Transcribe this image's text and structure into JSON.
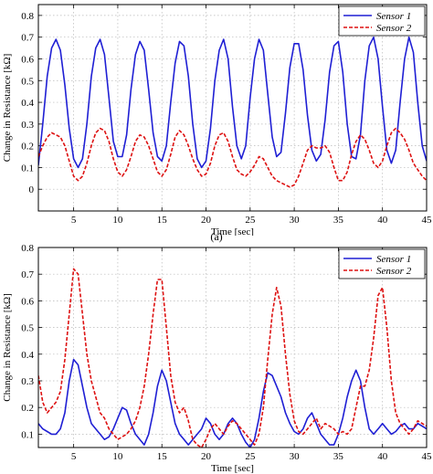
{
  "caption": "(a)",
  "chart_data": [
    {
      "type": "line",
      "title": "",
      "xlabel": "Time [sec]",
      "ylabel": "Change in Resistance [kΩ]",
      "xlim": [
        1,
        45
      ],
      "ylim": [
        -0.1,
        0.85
      ],
      "xticks": [
        5,
        10,
        15,
        20,
        25,
        30,
        35,
        40,
        45
      ],
      "yticks": [
        0,
        0.1,
        0.2,
        0.3,
        0.4,
        0.5,
        0.6,
        0.7,
        0.8
      ],
      "grid": true,
      "legend_position": "top-right",
      "series": [
        {
          "name": "Sensor 1",
          "color": "#1f1fd4",
          "style": "solid",
          "x": [
            1,
            1.5,
            2,
            2.5,
            3,
            3.5,
            4,
            4.5,
            5,
            5.5,
            6,
            6.5,
            7,
            7.5,
            8,
            8.5,
            9,
            9.5,
            10,
            10.5,
            11,
            11.5,
            12,
            12.5,
            13,
            13.5,
            14,
            14.5,
            15,
            15.5,
            16,
            16.5,
            17,
            17.5,
            18,
            18.5,
            19,
            19.5,
            20,
            20.5,
            21,
            21.5,
            22,
            22.5,
            23,
            23.5,
            24,
            24.5,
            25,
            25.5,
            26,
            26.5,
            27,
            27.5,
            28,
            28.5,
            29,
            29.5,
            30,
            30.5,
            31,
            31.5,
            32,
            32.5,
            33,
            33.5,
            34,
            34.5,
            35,
            35.5,
            36,
            36.5,
            37,
            37.5,
            38,
            38.5,
            39,
            39.5,
            40,
            40.5,
            41,
            41.5,
            42,
            42.5,
            43,
            43.5,
            44,
            44.5,
            45
          ],
          "values": [
            0.11,
            0.3,
            0.52,
            0.65,
            0.69,
            0.64,
            0.48,
            0.28,
            0.14,
            0.1,
            0.14,
            0.3,
            0.52,
            0.65,
            0.69,
            0.62,
            0.42,
            0.22,
            0.15,
            0.15,
            0.25,
            0.46,
            0.62,
            0.68,
            0.64,
            0.46,
            0.26,
            0.15,
            0.13,
            0.2,
            0.4,
            0.58,
            0.68,
            0.66,
            0.52,
            0.3,
            0.14,
            0.1,
            0.13,
            0.28,
            0.5,
            0.64,
            0.69,
            0.6,
            0.38,
            0.2,
            0.14,
            0.2,
            0.42,
            0.6,
            0.69,
            0.64,
            0.44,
            0.24,
            0.15,
            0.17,
            0.35,
            0.56,
            0.67,
            0.67,
            0.55,
            0.34,
            0.18,
            0.13,
            0.16,
            0.32,
            0.54,
            0.66,
            0.68,
            0.54,
            0.3,
            0.15,
            0.14,
            0.25,
            0.5,
            0.66,
            0.7,
            0.6,
            0.38,
            0.18,
            0.12,
            0.18,
            0.4,
            0.6,
            0.7,
            0.63,
            0.4,
            0.2,
            0.13
          ]
        },
        {
          "name": "Sensor 2",
          "color": "#dd1111",
          "style": "dashed",
          "x": [
            1,
            1.5,
            2,
            2.5,
            3,
            3.5,
            4,
            4.5,
            5,
            5.5,
            6,
            6.5,
            7,
            7.5,
            8,
            8.5,
            9,
            9.5,
            10,
            10.5,
            11,
            11.5,
            12,
            12.5,
            13,
            13.5,
            14,
            14.5,
            15,
            15.5,
            16,
            16.5,
            17,
            17.5,
            18,
            18.5,
            19,
            19.5,
            20,
            20.5,
            21,
            21.5,
            22,
            22.5,
            23,
            23.5,
            24,
            24.5,
            25,
            25.5,
            26,
            26.5,
            27,
            27.5,
            28,
            28.5,
            29,
            29.5,
            30,
            30.5,
            31,
            31.5,
            32,
            32.5,
            33,
            33.5,
            34,
            34.5,
            35,
            35.5,
            36,
            36.5,
            37,
            37.5,
            38,
            38.5,
            39,
            39.5,
            40,
            40.5,
            41,
            41.5,
            42,
            42.5,
            43,
            43.5,
            44,
            44.5,
            45
          ],
          "values": [
            0.15,
            0.2,
            0.24,
            0.26,
            0.25,
            0.24,
            0.2,
            0.13,
            0.06,
            0.04,
            0.06,
            0.12,
            0.2,
            0.26,
            0.28,
            0.27,
            0.22,
            0.14,
            0.08,
            0.06,
            0.09,
            0.15,
            0.22,
            0.25,
            0.24,
            0.2,
            0.14,
            0.08,
            0.06,
            0.09,
            0.16,
            0.24,
            0.27,
            0.25,
            0.2,
            0.14,
            0.09,
            0.06,
            0.07,
            0.12,
            0.2,
            0.25,
            0.26,
            0.22,
            0.15,
            0.09,
            0.07,
            0.06,
            0.08,
            0.11,
            0.15,
            0.14,
            0.1,
            0.06,
            0.04,
            0.03,
            0.02,
            0.01,
            0.02,
            0.06,
            0.12,
            0.18,
            0.2,
            0.19,
            0.19,
            0.2,
            0.17,
            0.1,
            0.04,
            0.04,
            0.08,
            0.16,
            0.22,
            0.25,
            0.23,
            0.18,
            0.12,
            0.1,
            0.13,
            0.2,
            0.26,
            0.28,
            0.26,
            0.23,
            0.18,
            0.12,
            0.09,
            0.06,
            0.04
          ]
        }
      ]
    },
    {
      "type": "line",
      "title": "",
      "xlabel": "Time [sec]",
      "ylabel": "Change in Resistance [kΩ]",
      "xlim": [
        1,
        45
      ],
      "ylim": [
        0.05,
        0.8
      ],
      "xticks": [
        5,
        10,
        15,
        20,
        25,
        30,
        35,
        40,
        45
      ],
      "yticks": [
        0.1,
        0.2,
        0.3,
        0.4,
        0.5,
        0.6,
        0.7,
        0.8
      ],
      "grid": true,
      "legend_position": "top-right",
      "series": [
        {
          "name": "Sensor 1",
          "color": "#1f1fd4",
          "style": "solid",
          "x": [
            1,
            1.5,
            2,
            2.5,
            3,
            3.5,
            4,
            4.5,
            5,
            5.5,
            6,
            6.5,
            7,
            7.5,
            8,
            8.5,
            9,
            9.5,
            10,
            10.5,
            11,
            11.5,
            12,
            12.5,
            13,
            13.5,
            14,
            14.5,
            15,
            15.5,
            16,
            16.5,
            17,
            17.5,
            18,
            18.5,
            19,
            19.5,
            20,
            20.5,
            21,
            21.5,
            22,
            22.5,
            23,
            23.5,
            24,
            24.5,
            25,
            25.5,
            26,
            26.5,
            27,
            27.5,
            28,
            28.5,
            29,
            29.5,
            30,
            30.5,
            31,
            31.5,
            32,
            32.5,
            33,
            33.5,
            34,
            34.5,
            35,
            35.5,
            36,
            36.5,
            37,
            37.5,
            38,
            38.5,
            39,
            39.5,
            40,
            40.5,
            41,
            41.5,
            42,
            42.5,
            43,
            43.5,
            44,
            44.5,
            45
          ],
          "values": [
            0.14,
            0.12,
            0.11,
            0.1,
            0.1,
            0.12,
            0.18,
            0.3,
            0.38,
            0.36,
            0.28,
            0.2,
            0.14,
            0.12,
            0.1,
            0.08,
            0.09,
            0.12,
            0.16,
            0.2,
            0.19,
            0.14,
            0.1,
            0.08,
            0.06,
            0.1,
            0.18,
            0.28,
            0.34,
            0.3,
            0.22,
            0.14,
            0.1,
            0.08,
            0.06,
            0.08,
            0.1,
            0.12,
            0.16,
            0.14,
            0.1,
            0.08,
            0.1,
            0.14,
            0.16,
            0.14,
            0.1,
            0.07,
            0.05,
            0.08,
            0.16,
            0.26,
            0.33,
            0.32,
            0.28,
            0.24,
            0.18,
            0.14,
            0.11,
            0.1,
            0.12,
            0.16,
            0.18,
            0.14,
            0.1,
            0.08,
            0.06,
            0.06,
            0.1,
            0.16,
            0.24,
            0.3,
            0.34,
            0.3,
            0.2,
            0.12,
            0.1,
            0.12,
            0.14,
            0.12,
            0.1,
            0.11,
            0.13,
            0.14,
            0.12,
            0.12,
            0.14,
            0.13,
            0.12
          ]
        },
        {
          "name": "Sensor 2",
          "color": "#dd1111",
          "style": "dashed",
          "x": [
            1,
            1.5,
            2,
            2.5,
            3,
            3.5,
            4,
            4.5,
            5,
            5.5,
            6,
            6.5,
            7,
            7.5,
            8,
            8.5,
            9,
            9.5,
            10,
            10.5,
            11,
            11.5,
            12,
            12.5,
            13,
            13.5,
            14,
            14.5,
            15,
            15.5,
            16,
            16.5,
            17,
            17.5,
            18,
            18.5,
            19,
            19.5,
            20,
            20.5,
            21,
            21.5,
            22,
            22.5,
            23,
            23.5,
            24,
            24.5,
            25,
            25.5,
            26,
            26.5,
            27,
            27.5,
            28,
            28.5,
            29,
            29.5,
            30,
            30.5,
            31,
            31.5,
            32,
            32.5,
            33,
            33.5,
            34,
            34.5,
            35,
            35.5,
            36,
            36.5,
            37,
            37.5,
            38,
            38.5,
            39,
            39.5,
            40,
            40.5,
            41,
            41.5,
            42,
            42.5,
            43,
            43.5,
            44,
            44.5,
            45
          ],
          "values": [
            0.32,
            0.22,
            0.18,
            0.2,
            0.22,
            0.26,
            0.38,
            0.55,
            0.72,
            0.7,
            0.55,
            0.4,
            0.3,
            0.24,
            0.18,
            0.16,
            0.12,
            0.1,
            0.08,
            0.09,
            0.1,
            0.12,
            0.15,
            0.2,
            0.28,
            0.4,
            0.55,
            0.68,
            0.68,
            0.5,
            0.32,
            0.22,
            0.18,
            0.2,
            0.15,
            0.08,
            0.06,
            0.05,
            0.08,
            0.12,
            0.14,
            0.12,
            0.1,
            0.13,
            0.15,
            0.14,
            0.12,
            0.1,
            0.08,
            0.06,
            0.1,
            0.2,
            0.38,
            0.55,
            0.65,
            0.58,
            0.4,
            0.25,
            0.15,
            0.11,
            0.1,
            0.12,
            0.14,
            0.16,
            0.12,
            0.14,
            0.13,
            0.12,
            0.1,
            0.11,
            0.1,
            0.12,
            0.2,
            0.28,
            0.28,
            0.34,
            0.46,
            0.62,
            0.65,
            0.5,
            0.3,
            0.18,
            0.14,
            0.12,
            0.1,
            0.12,
            0.15,
            0.14,
            0.13
          ]
        }
      ]
    }
  ]
}
